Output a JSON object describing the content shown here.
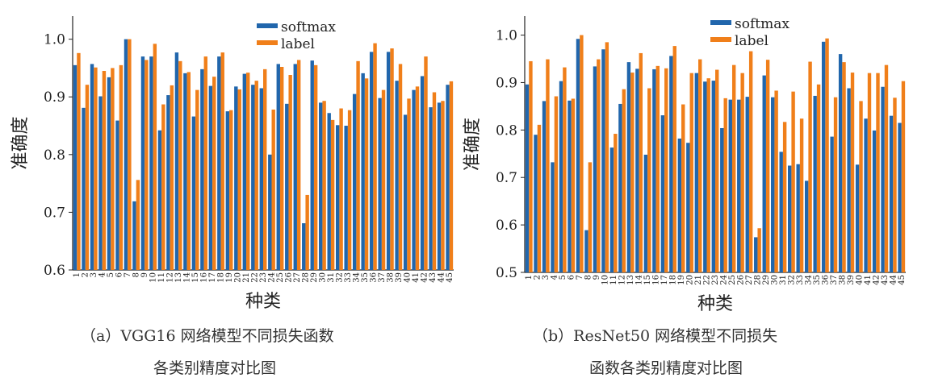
{
  "colors": {
    "softmax": "#2166ac",
    "label": "#f07f1a"
  },
  "chart_data": [
    {
      "type": "bar",
      "xlabel": "种类",
      "ylabel": "准确度",
      "ylim": [
        0.6,
        1.04
      ],
      "yticks": [
        "0.6",
        "0.7",
        "0.8",
        "0.9",
        "1.0"
      ],
      "legend": "top-center",
      "grid": false,
      "categories": [
        "1",
        "2",
        "3",
        "4",
        "5",
        "6",
        "7",
        "8",
        "9",
        "10",
        "11",
        "12",
        "13",
        "14",
        "15",
        "16",
        "17",
        "18",
        "19",
        "20",
        "21",
        "22",
        "23",
        "24",
        "25",
        "26",
        "27",
        "28",
        "29",
        "30",
        "31",
        "32",
        "33",
        "34",
        "35",
        "36",
        "37",
        "38",
        "39",
        "40",
        "41",
        "42",
        "43",
        "44",
        "45"
      ],
      "series": [
        {
          "name": "softmax",
          "values": [
            0.955,
            0.881,
            0.957,
            0.901,
            0.934,
            0.859,
            1.0,
            0.719,
            0.97,
            0.97,
            0.842,
            0.903,
            0.977,
            0.941,
            0.866,
            0.948,
            0.919,
            0.97,
            0.875,
            0.918,
            0.94,
            0.921,
            0.915,
            0.8,
            0.957,
            0.888,
            0.957,
            0.681,
            0.963,
            0.89,
            0.872,
            0.851,
            0.85,
            0.905,
            0.941,
            0.978,
            0.898,
            0.978,
            0.928,
            0.869,
            0.912,
            0.936,
            0.882,
            0.89,
            0.921
          ]
        },
        {
          "name": "label",
          "values": [
            0.976,
            0.921,
            0.951,
            0.945,
            0.95,
            0.955,
            1.0,
            0.756,
            0.964,
            0.992,
            0.887,
            0.92,
            0.962,
            0.943,
            0.912,
            0.97,
            0.935,
            0.977,
            0.877,
            0.913,
            0.942,
            0.928,
            0.948,
            0.878,
            0.952,
            0.938,
            0.964,
            0.73,
            0.955,
            0.893,
            0.86,
            0.88,
            0.877,
            0.962,
            0.932,
            0.993,
            0.912,
            0.984,
            0.957,
            0.897,
            0.918,
            0.97,
            0.908,
            0.893,
            0.927
          ]
        }
      ]
    },
    {
      "type": "bar",
      "xlabel": "种类",
      "ylabel": "准确度",
      "ylim": [
        0.5,
        1.04
      ],
      "yticks": [
        "0.5",
        "0.6",
        "0.7",
        "0.8",
        "0.9",
        "1.0"
      ],
      "legend": "top-center",
      "grid": false,
      "categories": [
        "1",
        "2",
        "3",
        "4",
        "5",
        "6",
        "7",
        "8",
        "9",
        "10",
        "11",
        "12",
        "13",
        "14",
        "15",
        "16",
        "17",
        "18",
        "19",
        "20",
        "21",
        "22",
        "23",
        "24",
        "25",
        "26",
        "27",
        "28",
        "29",
        "30",
        "31",
        "32",
        "33",
        "34",
        "35",
        "36",
        "37",
        "38",
        "39",
        "40",
        "41",
        "42",
        "43",
        "44",
        "45"
      ],
      "series": [
        {
          "name": "softmax",
          "values": [
            0.896,
            0.79,
            0.861,
            0.732,
            0.903,
            0.862,
            0.992,
            0.589,
            0.934,
            0.97,
            0.763,
            0.855,
            0.943,
            0.929,
            0.748,
            0.928,
            0.831,
            0.956,
            0.782,
            0.773,
            0.92,
            0.902,
            0.904,
            0.804,
            0.864,
            0.864,
            0.87,
            0.574,
            0.915,
            0.869,
            0.754,
            0.725,
            0.728,
            0.693,
            0.872,
            0.986,
            0.786,
            0.96,
            0.888,
            0.727,
            0.824,
            0.799,
            0.891,
            0.83,
            0.815
          ]
        },
        {
          "name": "label",
          "values": [
            0.945,
            0.811,
            0.949,
            0.871,
            0.932,
            0.866,
            1.0,
            0.732,
            0.949,
            0.985,
            0.792,
            0.886,
            0.921,
            0.962,
            0.888,
            0.935,
            0.93,
            0.977,
            0.854,
            0.92,
            0.949,
            0.909,
            0.927,
            0.867,
            0.937,
            0.92,
            0.966,
            0.593,
            0.948,
            0.883,
            0.817,
            0.881,
            0.824,
            0.944,
            0.896,
            0.993,
            0.869,
            0.943,
            0.921,
            0.861,
            0.92,
            0.92,
            0.937,
            0.868,
            0.903
          ]
        }
      ]
    }
  ],
  "captions": {
    "a_line1": "（a）VGG16 网络模型不同损失函数",
    "a_line2": "各类别精度对比图",
    "b_line1": "（b）ResNet50 网络模型不同损失",
    "b_line2": "函数各类别精度对比图"
  }
}
